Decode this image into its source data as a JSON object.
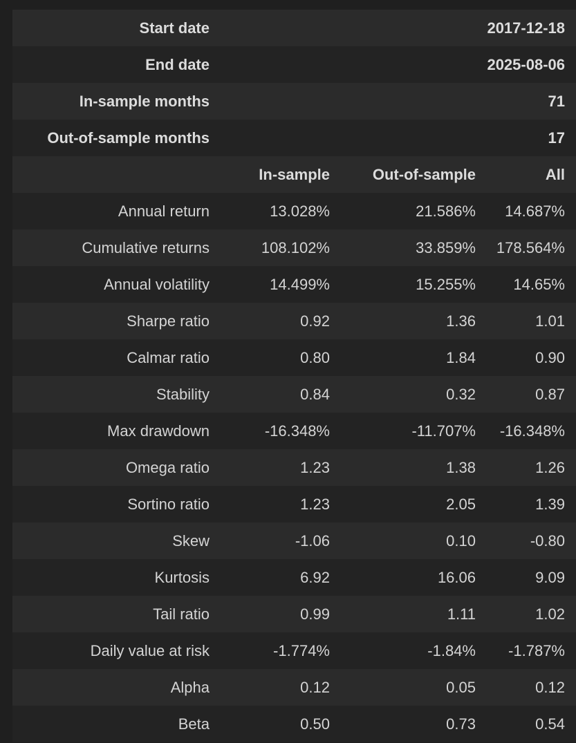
{
  "info_rows": [
    {
      "label": "Start date",
      "value": "2017-12-18"
    },
    {
      "label": "End date",
      "value": "2025-08-06"
    },
    {
      "label": "In-sample months",
      "value": "71"
    },
    {
      "label": "Out-of-sample months",
      "value": "17"
    }
  ],
  "columns": [
    "In-sample",
    "Out-of-sample",
    "All"
  ],
  "rows": [
    {
      "label": "Annual return",
      "values": [
        "13.028%",
        "21.586%",
        "14.687%"
      ]
    },
    {
      "label": "Cumulative returns",
      "values": [
        "108.102%",
        "33.859%",
        "178.564%"
      ]
    },
    {
      "label": "Annual volatility",
      "values": [
        "14.499%",
        "15.255%",
        "14.65%"
      ]
    },
    {
      "label": "Sharpe ratio",
      "values": [
        "0.92",
        "1.36",
        "1.01"
      ]
    },
    {
      "label": "Calmar ratio",
      "values": [
        "0.80",
        "1.84",
        "0.90"
      ]
    },
    {
      "label": "Stability",
      "values": [
        "0.84",
        "0.32",
        "0.87"
      ]
    },
    {
      "label": "Max drawdown",
      "values": [
        "-16.348%",
        "-11.707%",
        "-16.348%"
      ]
    },
    {
      "label": "Omega ratio",
      "values": [
        "1.23",
        "1.38",
        "1.26"
      ]
    },
    {
      "label": "Sortino ratio",
      "values": [
        "1.23",
        "2.05",
        "1.39"
      ]
    },
    {
      "label": "Skew",
      "values": [
        "-1.06",
        "0.10",
        "-0.80"
      ]
    },
    {
      "label": "Kurtosis",
      "values": [
        "6.92",
        "16.06",
        "9.09"
      ]
    },
    {
      "label": "Tail ratio",
      "values": [
        "0.99",
        "1.11",
        "1.02"
      ]
    },
    {
      "label": "Daily value at risk",
      "values": [
        "-1.774%",
        "-1.84%",
        "-1.787%"
      ]
    },
    {
      "label": "Alpha",
      "values": [
        "0.12",
        "0.05",
        "0.12"
      ]
    },
    {
      "label": "Beta",
      "values": [
        "0.50",
        "0.73",
        "0.54"
      ]
    }
  ]
}
